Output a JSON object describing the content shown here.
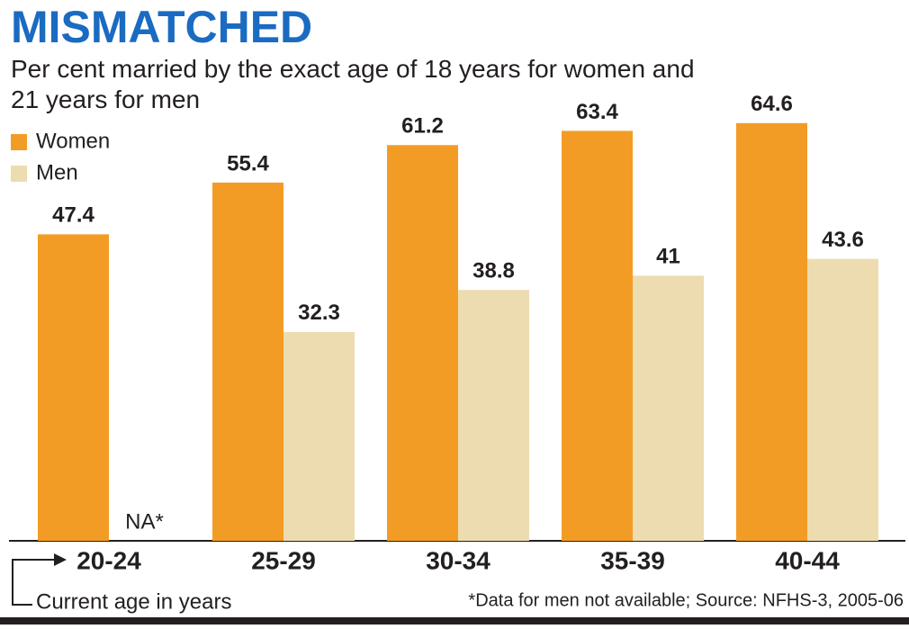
{
  "chart_data": {
    "type": "bar",
    "title": "MISMATCHED",
    "subtitle": "Per cent married by the exact age of 18 years for women and 21 years for men",
    "categories": [
      "20-24",
      "25-29",
      "30-34",
      "35-39",
      "40-44"
    ],
    "series": [
      {
        "name": "Women",
        "color": "#f39c25",
        "values": [
          47.4,
          55.4,
          61.2,
          63.4,
          64.6
        ]
      },
      {
        "name": "Men",
        "color": "#ecdcb0",
        "values": [
          null,
          32.3,
          38.8,
          41,
          43.6
        ],
        "value_labels": [
          "NA*",
          "32.3",
          "38.8",
          "41",
          "43.6"
        ]
      }
    ],
    "ylim": [
      0,
      70
    ],
    "legend": "top-left",
    "x_label": "Current age in years",
    "note": "*Data for men not available; Source: NFHS-3, 2005-06"
  }
}
